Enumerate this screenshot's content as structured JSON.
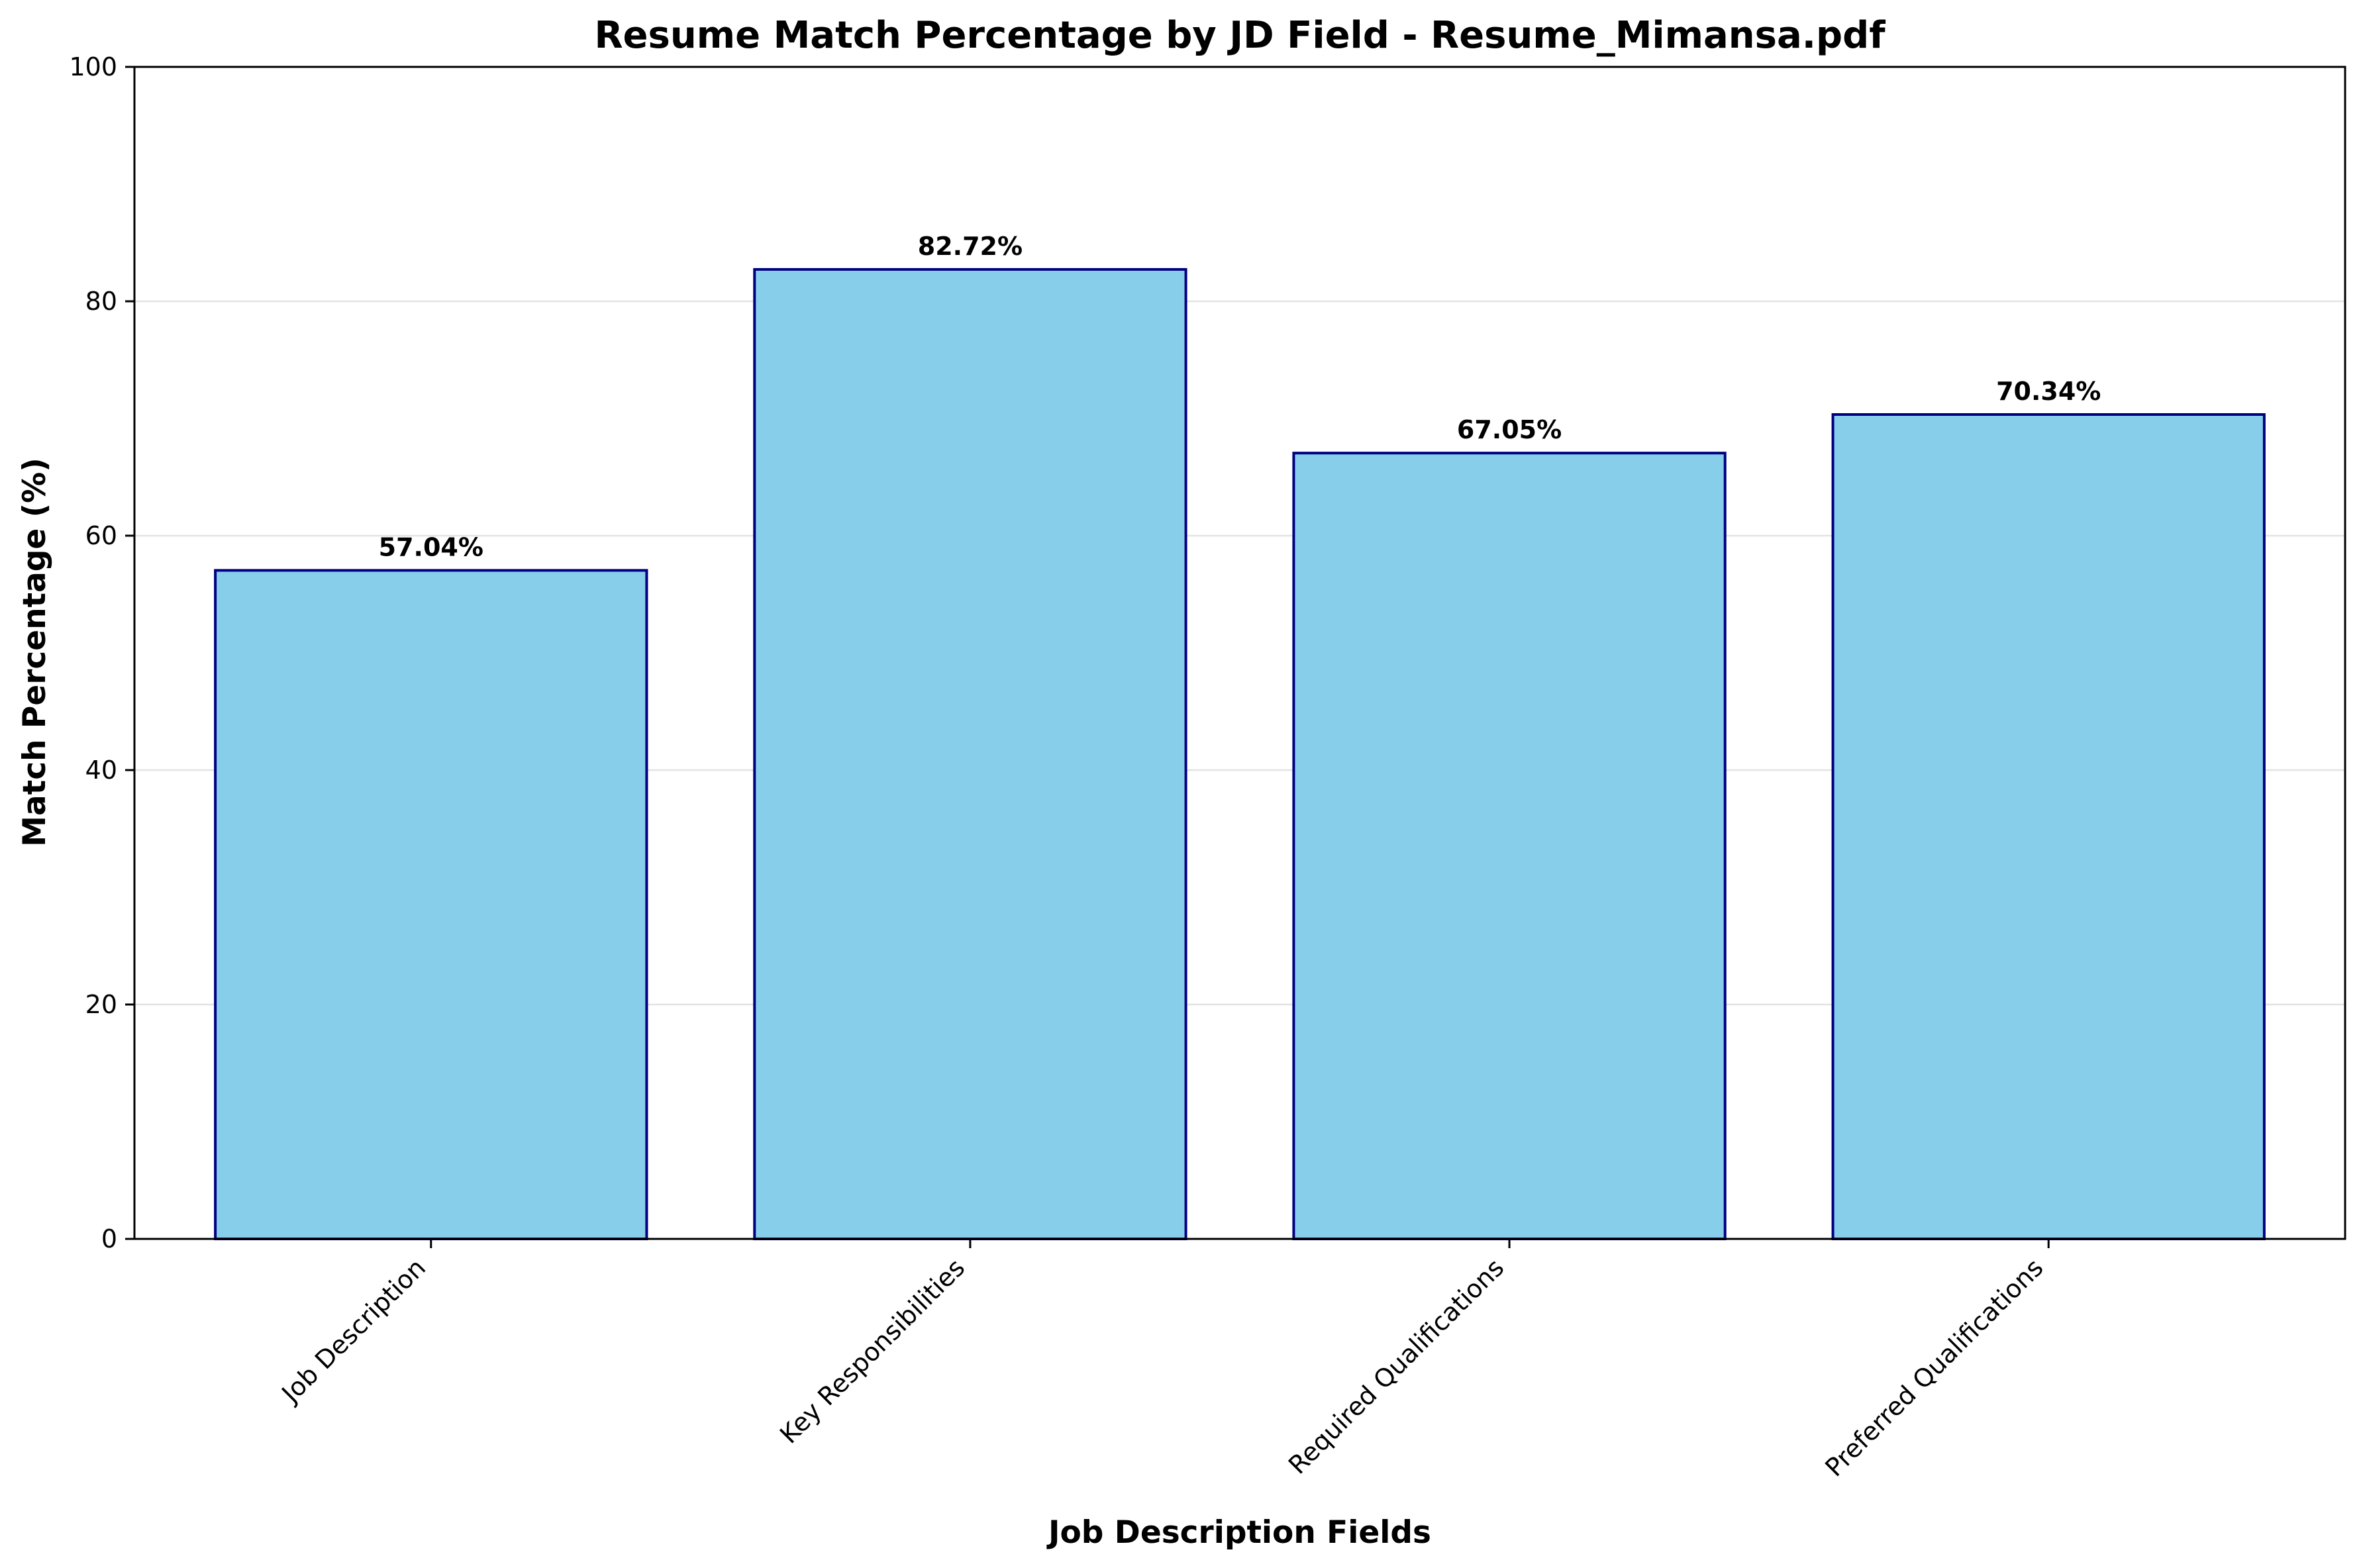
{
  "chart_data": {
    "type": "bar",
    "title": "Resume Match Percentage by JD Field - Resume_Mimansa.pdf",
    "xlabel": "Job Description Fields",
    "ylabel": "Match Percentage (%)",
    "categories": [
      "Job Description",
      "Key Responsibilities",
      "Required Qualifications",
      "Preferred Qualifications"
    ],
    "values": [
      57.04,
      82.72,
      67.05,
      70.34
    ],
    "value_labels": [
      "57.04%",
      "82.72%",
      "67.05%",
      "70.34%"
    ],
    "ylim": [
      0,
      100
    ],
    "yticks": [
      0,
      20,
      40,
      60,
      80,
      100
    ],
    "grid": "horizontal",
    "legend": "none",
    "colors": {
      "bar_fill": "#87ceeb",
      "bar_edge": "#000080",
      "grid": "#e3e3e3"
    }
  }
}
